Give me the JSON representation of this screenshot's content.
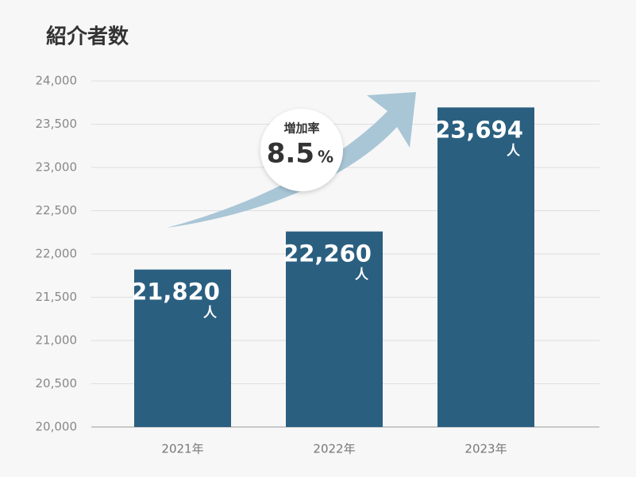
{
  "chart_data": {
    "type": "bar",
    "title": "紹介者数",
    "categories": [
      "2021年",
      "2022年",
      "2023年"
    ],
    "values": [
      21820,
      22260,
      23694
    ],
    "value_labels": [
      "21,820",
      "22,260",
      "23,694"
    ],
    "unit_label": "人",
    "color": "#2a5f80",
    "ylim": [
      20000,
      24000
    ],
    "yticks": [
      {
        "value": 20000,
        "label": "20,000"
      },
      {
        "value": 20500,
        "label": "20,500"
      },
      {
        "value": 21000,
        "label": "21,000"
      },
      {
        "value": 21500,
        "label": "21,500"
      },
      {
        "value": 22000,
        "label": "22,000"
      },
      {
        "value": 22500,
        "label": "22,500"
      },
      {
        "value": 23000,
        "label": "23,000"
      },
      {
        "value": 23500,
        "label": "23,500"
      },
      {
        "value": 24000,
        "label": "24,000"
      }
    ],
    "grid": true,
    "annotation": {
      "title": "増加率",
      "value": 8.5,
      "unit": "%"
    }
  }
}
